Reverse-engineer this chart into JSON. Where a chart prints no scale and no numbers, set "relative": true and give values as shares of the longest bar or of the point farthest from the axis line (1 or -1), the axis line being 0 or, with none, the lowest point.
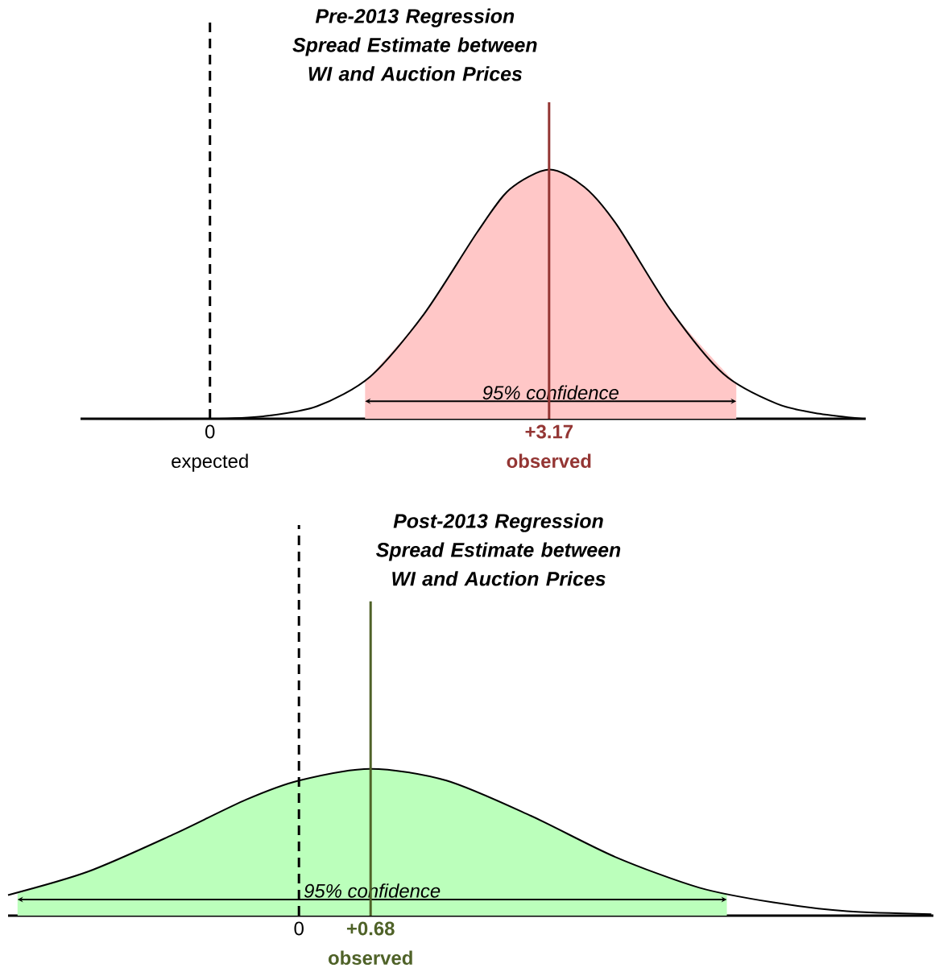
{
  "chart_data": [
    {
      "type": "line",
      "relative": true,
      "title": "Pre-2013 Regression Spread Estimate between WI and Auction Prices",
      "x": [
        -1.2,
        0.0,
        0.5,
        1.0,
        1.5,
        2.0,
        2.5,
        2.8,
        3.17,
        3.5,
        3.8,
        4.3,
        4.8,
        5.3,
        5.7,
        6.1
      ],
      "series": [
        {
          "type": "area",
          "color": "#ffc7c7",
          "x": [
            1.45,
            2.0,
            2.5,
            2.8,
            3.17,
            3.5,
            3.8,
            4.3,
            4.92
          ],
          "values": [
            0.15,
            0.42,
            0.75,
            0.92,
            1,
            0.93,
            0.78,
            0.44,
            0.14
          ]
        },
        {
          "type": "line",
          "color": "#000000",
          "values": [
            0,
            0,
            0.01,
            0.05,
            0.17,
            0.42,
            0.75,
            0.92,
            1,
            0.93,
            0.78,
            0.44,
            0.18,
            0.06,
            0.02,
            0
          ]
        }
      ],
      "xlim": [
        -1.21,
        6.13
      ],
      "xticks": [
        0,
        {
          "value": 3.17,
          "label": "+3.17"
        }
      ],
      "ref_lines": [
        {
          "axis": "x",
          "value": 0,
          "label": "expected",
          "color": "#000000",
          "line_style": "dashed"
        },
        {
          "axis": "x",
          "value": 3.17,
          "label": "observed",
          "color": "#943634",
          "line_style": "solid"
        }
      ],
      "annotations": [
        "95% confidence"
      ]
    },
    {
      "type": "line",
      "relative": true,
      "title": "Post-2013 Regression Spread Estimate between WI and Auction Prices",
      "x": [
        -2.76,
        -2.0,
        -1.2,
        -0.5,
        0.0,
        0.68,
        1.4,
        2.2,
        3.0,
        3.8,
        4.5,
        5.2,
        6.0
      ],
      "series": [
        {
          "type": "area",
          "color": "#bbffbb",
          "x": [
            -2.67,
            -2.0,
            -1.2,
            -0.5,
            0.0,
            0.68,
            1.4,
            2.2,
            3.0,
            3.8,
            4.06
          ],
          "values": [
            0.15,
            0.3,
            0.55,
            0.79,
            0.92,
            1,
            0.92,
            0.68,
            0.4,
            0.19,
            0.15
          ]
        },
        {
          "type": "line",
          "color": "#000000",
          "values": [
            0.14,
            0.3,
            0.55,
            0.79,
            0.92,
            1,
            0.92,
            0.68,
            0.4,
            0.19,
            0.09,
            0.03,
            0.01
          ]
        }
      ],
      "xlim": [
        -2.76,
        6.02
      ],
      "xticks": [
        0,
        {
          "value": 0.68,
          "label": "+0.68"
        }
      ],
      "ref_lines": [
        {
          "axis": "x",
          "value": 0,
          "color": "#000000",
          "line_style": "dashed"
        },
        {
          "axis": "x",
          "value": 0.68,
          "label": "observed",
          "color": "#4f6228",
          "line_style": "solid"
        }
      ],
      "annotations": [
        "95% confidence"
      ]
    }
  ]
}
